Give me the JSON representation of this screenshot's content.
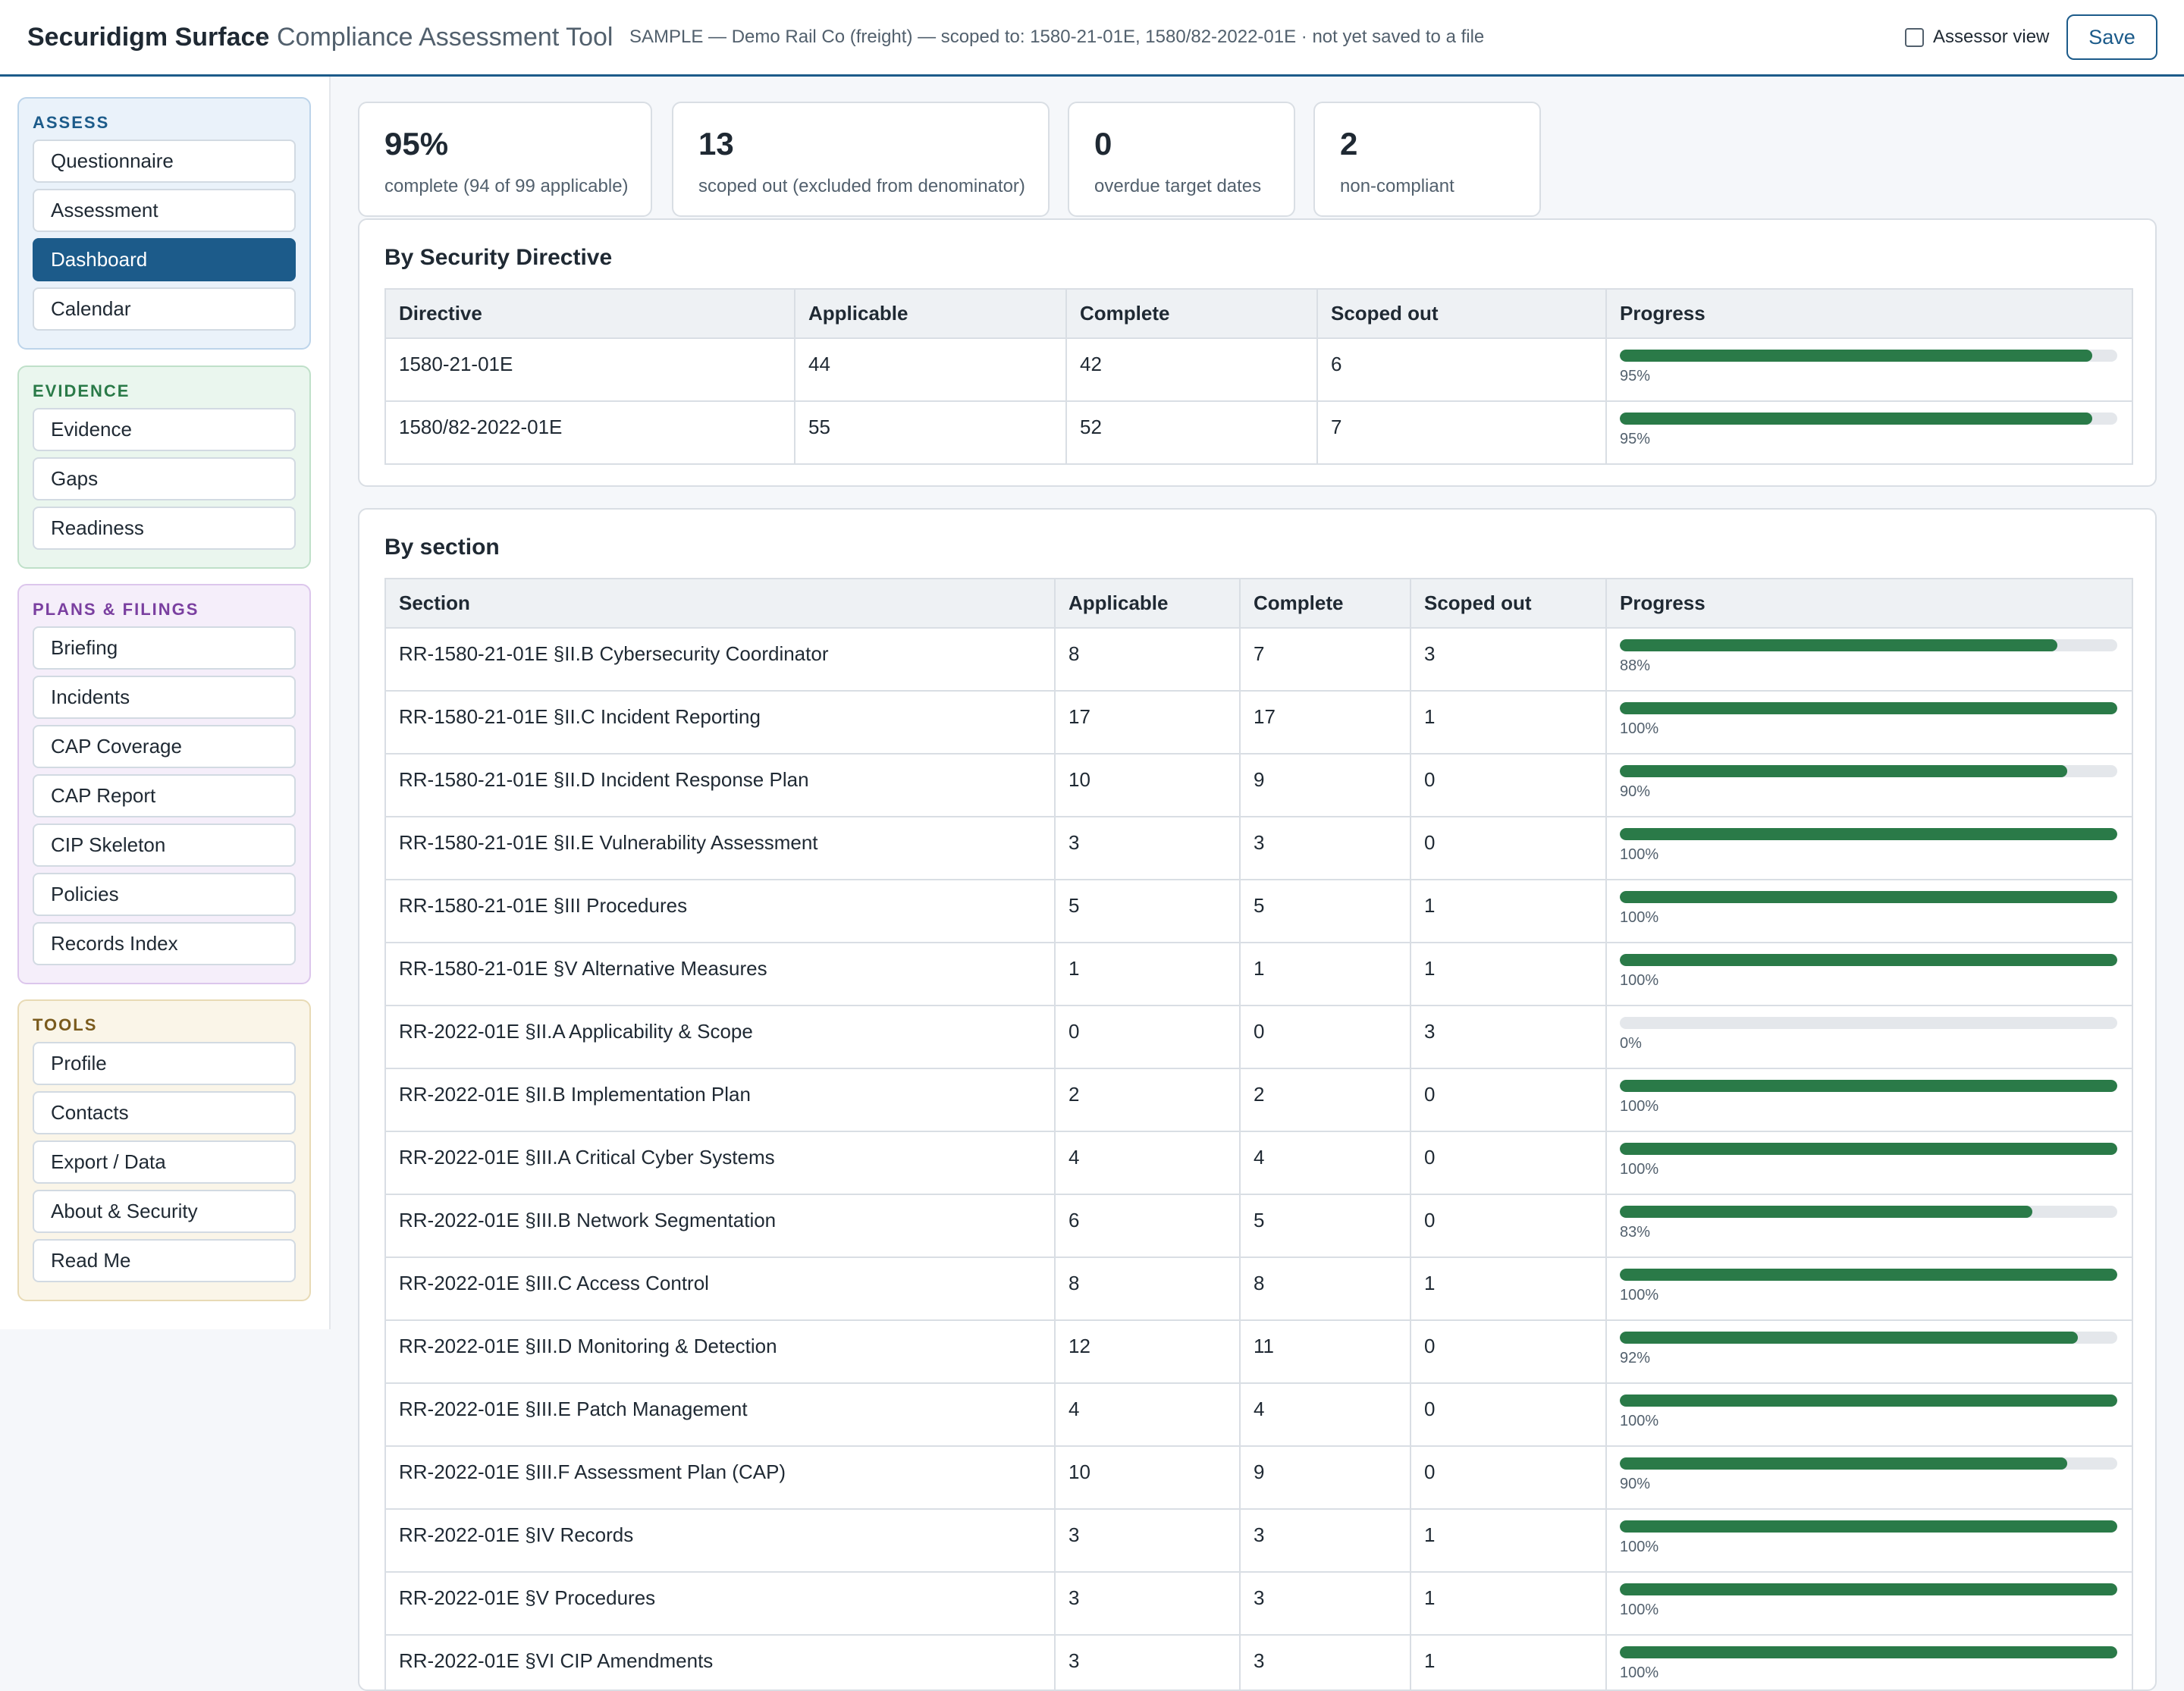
{
  "header": {
    "brand": "Securidigm Surface",
    "separator": "·",
    "subtitle": "Compliance Assessment Tool",
    "context": "SAMPLE — Demo Rail Co (freight) — scoped to: 1580-21-01E, 1580/82-2022-01E · not yet saved to a file",
    "assessor_label": "Assessor view",
    "assessor_checked": false,
    "save_label": "Save"
  },
  "sidebar": {
    "groups": [
      {
        "title": "ASSESS",
        "items": [
          "Questionnaire",
          "Assessment",
          "Dashboard",
          "Calendar"
        ],
        "active": "Dashboard"
      },
      {
        "title": "EVIDENCE",
        "items": [
          "Evidence",
          "Gaps",
          "Readiness"
        ]
      },
      {
        "title": "PLANS & FILINGS",
        "items": [
          "Briefing",
          "Incidents",
          "CAP Coverage",
          "CAP Report",
          "CIP Skeleton",
          "Policies",
          "Records Index"
        ]
      },
      {
        "title": "TOOLS",
        "items": [
          "Profile",
          "Contacts",
          "Export / Data",
          "About & Security",
          "Read Me"
        ]
      }
    ]
  },
  "stats": [
    {
      "value": "95%",
      "label": "complete (94 of 99 applicable)"
    },
    {
      "value": "13",
      "label": "scoped out (excluded from denominator)"
    },
    {
      "value": "0",
      "label": "overdue target dates"
    },
    {
      "value": "2",
      "label": "non-compliant"
    }
  ],
  "directives": {
    "title": "By Security Directive",
    "columns": [
      "Directive",
      "Applicable",
      "Complete",
      "Scoped out",
      "Progress"
    ],
    "rows": [
      {
        "name": "1580-21-01E",
        "applicable": "44",
        "complete": "42",
        "scoped_out": "6",
        "progress": 95,
        "progress_label": "95%"
      },
      {
        "name": "1580/82-2022-01E",
        "applicable": "55",
        "complete": "52",
        "scoped_out": "7",
        "progress": 95,
        "progress_label": "95%"
      }
    ]
  },
  "sections": {
    "title": "By section",
    "columns": [
      "Section",
      "Applicable",
      "Complete",
      "Scoped out",
      "Progress"
    ],
    "rows": [
      {
        "name": "RR-1580-21-01E §II.B Cybersecurity Coordinator",
        "applicable": "8",
        "complete": "7",
        "scoped_out": "3",
        "progress": 88,
        "progress_label": "88%"
      },
      {
        "name": "RR-1580-21-01E §II.C Incident Reporting",
        "applicable": "17",
        "complete": "17",
        "scoped_out": "1",
        "progress": 100,
        "progress_label": "100%"
      },
      {
        "name": "RR-1580-21-01E §II.D Incident Response Plan",
        "applicable": "10",
        "complete": "9",
        "scoped_out": "0",
        "progress": 90,
        "progress_label": "90%"
      },
      {
        "name": "RR-1580-21-01E §II.E Vulnerability Assessment",
        "applicable": "3",
        "complete": "3",
        "scoped_out": "0",
        "progress": 100,
        "progress_label": "100%"
      },
      {
        "name": "RR-1580-21-01E §III Procedures",
        "applicable": "5",
        "complete": "5",
        "scoped_out": "1",
        "progress": 100,
        "progress_label": "100%"
      },
      {
        "name": "RR-1580-21-01E §V Alternative Measures",
        "applicable": "1",
        "complete": "1",
        "scoped_out": "1",
        "progress": 100,
        "progress_label": "100%"
      },
      {
        "name": "RR-2022-01E §II.A Applicability & Scope",
        "applicable": "0",
        "complete": "0",
        "scoped_out": "3",
        "progress": 0,
        "progress_label": "0%"
      },
      {
        "name": "RR-2022-01E §II.B Implementation Plan",
        "applicable": "2",
        "complete": "2",
        "scoped_out": "0",
        "progress": 100,
        "progress_label": "100%"
      },
      {
        "name": "RR-2022-01E §III.A Critical Cyber Systems",
        "applicable": "4",
        "complete": "4",
        "scoped_out": "0",
        "progress": 100,
        "progress_label": "100%"
      },
      {
        "name": "RR-2022-01E §III.B Network Segmentation",
        "applicable": "6",
        "complete": "5",
        "scoped_out": "0",
        "progress": 83,
        "progress_label": "83%"
      },
      {
        "name": "RR-2022-01E §III.C Access Control",
        "applicable": "8",
        "complete": "8",
        "scoped_out": "1",
        "progress": 100,
        "progress_label": "100%"
      },
      {
        "name": "RR-2022-01E §III.D Monitoring & Detection",
        "applicable": "12",
        "complete": "11",
        "scoped_out": "0",
        "progress": 92,
        "progress_label": "92%"
      },
      {
        "name": "RR-2022-01E §III.E Patch Management",
        "applicable": "4",
        "complete": "4",
        "scoped_out": "0",
        "progress": 100,
        "progress_label": "100%"
      },
      {
        "name": "RR-2022-01E §III.F Assessment Plan (CAP)",
        "applicable": "10",
        "complete": "9",
        "scoped_out": "0",
        "progress": 90,
        "progress_label": "90%"
      },
      {
        "name": "RR-2022-01E §IV Records",
        "applicable": "3",
        "complete": "3",
        "scoped_out": "1",
        "progress": 100,
        "progress_label": "100%"
      },
      {
        "name": "RR-2022-01E §V Procedures",
        "applicable": "3",
        "complete": "3",
        "scoped_out": "1",
        "progress": 100,
        "progress_label": "100%"
      },
      {
        "name": "RR-2022-01E §VI CIP Amendments",
        "applicable": "3",
        "complete": "3",
        "scoped_out": "1",
        "progress": 100,
        "progress_label": "100%"
      }
    ]
  },
  "colors": {
    "accent": "#1c5b8a",
    "progress": "#2a7a48",
    "track": "#e4e7eb"
  }
}
